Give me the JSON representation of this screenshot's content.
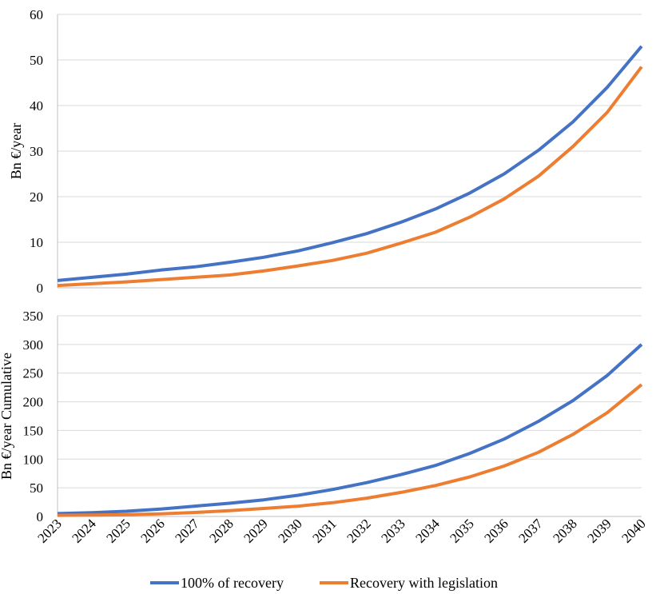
{
  "chart_data": [
    {
      "type": "line",
      "ylabel": "Bn €/year",
      "ylim": [
        0,
        60
      ],
      "yticks": [
        0,
        10,
        20,
        30,
        40,
        50,
        60
      ],
      "categories": [
        "2023",
        "2024",
        "2025",
        "2026",
        "2027",
        "2028",
        "2029",
        "2030",
        "2031",
        "2032",
        "2033",
        "2034",
        "2035",
        "2036",
        "2037",
        "2038",
        "2039",
        "2040"
      ],
      "grid": true,
      "series": [
        {
          "name": "100% of recovery",
          "color": "#4472C4",
          "values": [
            1.6,
            2.3,
            3.0,
            3.9,
            4.6,
            5.6,
            6.7,
            8.1,
            9.9,
            11.9,
            14.4,
            17.3,
            20.8,
            25.0,
            30.2,
            36.4,
            44.0,
            53.0
          ]
        },
        {
          "name": "Recovery with legislation",
          "color": "#ED7D31",
          "values": [
            0.5,
            0.9,
            1.3,
            1.8,
            2.3,
            2.8,
            3.7,
            4.8,
            6.0,
            7.6,
            9.8,
            12.2,
            15.5,
            19.5,
            24.5,
            31.0,
            38.5,
            48.5
          ]
        }
      ]
    },
    {
      "type": "line",
      "ylabel": "Bn €/year Cumulative",
      "ylim": [
        0,
        350
      ],
      "yticks": [
        0,
        50,
        100,
        150,
        200,
        250,
        300,
        350
      ],
      "categories": [
        "2023",
        "2024",
        "2025",
        "2026",
        "2027",
        "2028",
        "2029",
        "2030",
        "2031",
        "2032",
        "2033",
        "2034",
        "2035",
        "2036",
        "2037",
        "2038",
        "2039",
        "2040"
      ],
      "grid": true,
      "series": [
        {
          "name": "100% of recovery",
          "color": "#4472C4",
          "values": [
            5,
            6.5,
            9,
            13,
            18,
            23,
            29,
            37,
            47,
            59,
            73,
            89,
            110,
            135,
            166,
            202,
            246,
            300
          ]
        },
        {
          "name": "Recovery with legislation",
          "color": "#ED7D31",
          "values": [
            2,
            2.5,
            3,
            4.5,
            7,
            10,
            14,
            18,
            24,
            32,
            42,
            54,
            69,
            88,
            112,
            143,
            181,
            230
          ]
        }
      ]
    }
  ],
  "legend": {
    "position": "bottom",
    "items": [
      {
        "label": "100% of recovery",
        "color": "#4472C4"
      },
      {
        "label": "Recovery with legislation",
        "color": "#ED7D31"
      }
    ]
  }
}
